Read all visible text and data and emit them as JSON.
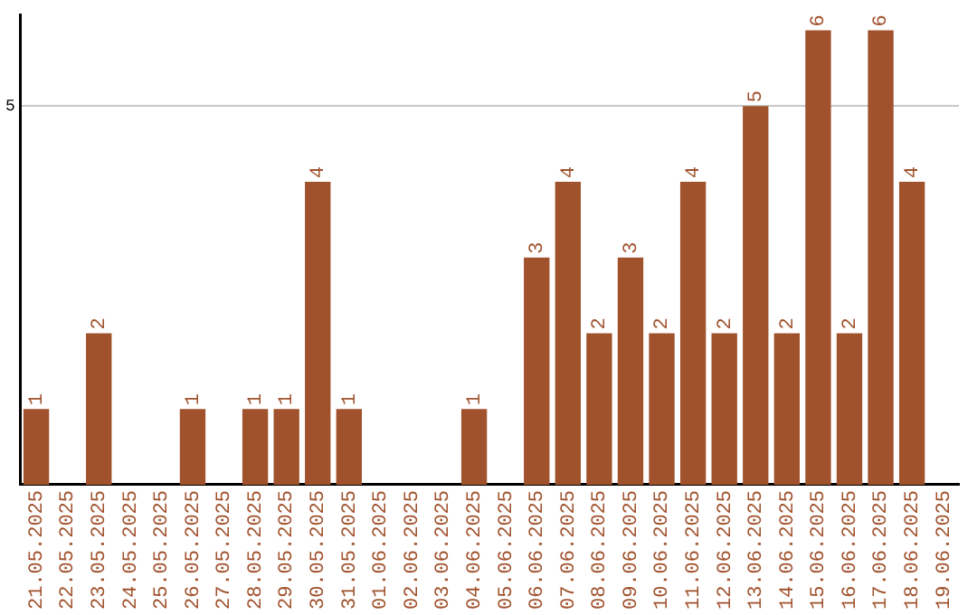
{
  "chart_data": {
    "type": "bar",
    "categories": [
      "21.05.2025",
      "22.05.2025",
      "23.05.2025",
      "24.05.2025",
      "25.05.2025",
      "26.05.2025",
      "27.05.2025",
      "28.05.2025",
      "29.05.2025",
      "30.05.2025",
      "31.05.2025",
      "01.06.2025",
      "02.06.2025",
      "03.06.2025",
      "04.06.2025",
      "05.06.2025",
      "06.06.2025",
      "07.06.2025",
      "08.06.2025",
      "09.06.2025",
      "10.06.2025",
      "11.06.2025",
      "12.06.2025",
      "13.06.2025",
      "14.06.2025",
      "15.06.2025",
      "16.06.2025",
      "17.06.2025",
      "18.06.2025",
      "19.06.2025"
    ],
    "values": [
      1,
      0,
      2,
      0,
      0,
      1,
      0,
      1,
      1,
      4,
      1,
      0,
      0,
      0,
      1,
      0,
      3,
      4,
      2,
      3,
      2,
      4,
      2,
      5,
      2,
      6,
      2,
      6,
      4,
      0
    ],
    "value_labels": [
      "1",
      null,
      "2",
      null,
      null,
      "1",
      null,
      "1",
      "1",
      "4",
      "1",
      null,
      null,
      null,
      "1",
      null,
      "3",
      "4",
      "2",
      "3",
      "2",
      "4",
      "2",
      "5",
      "2",
      "6",
      "2",
      "6",
      "4",
      null
    ],
    "color": "#a0522d",
    "ylim": [
      0,
      6.2
    ],
    "yticks": [
      5
    ],
    "grid": "y",
    "legend": false
  }
}
